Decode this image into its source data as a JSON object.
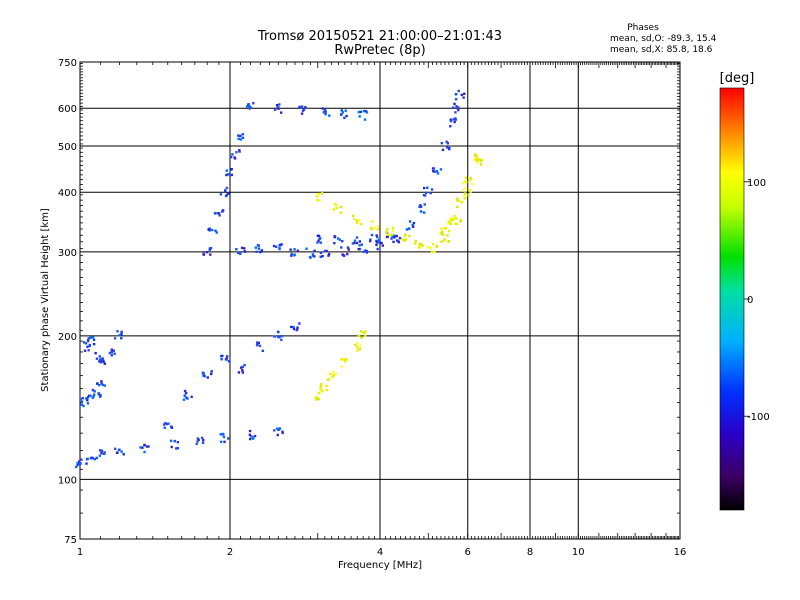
{
  "chart_data": {
    "type": "scatter",
    "title": "Tromsø 20150521 21:00:00–21:01:43",
    "subtitle": "RwPretec (8p)",
    "xlabel": "Frequency [MHz]",
    "ylabel": "Stationary phase Virtual Height [km]",
    "x_scale": "log",
    "y_scale": "log",
    "xlim": [
      1,
      16
    ],
    "ylim": [
      75,
      750
    ],
    "x_ticks": [
      "1",
      "2",
      "4",
      "6",
      "8",
      "10",
      "16"
    ],
    "y_ticks": [
      "75",
      "100",
      "200",
      "300",
      "400",
      "500",
      "600",
      "750"
    ],
    "grid": true,
    "stats": {
      "heading": "Phases",
      "line_o": "mean, sd,O: -89.3, 15.4",
      "line_x": "mean, sd,X:  85.8, 18.6"
    },
    "colorbar": {
      "label": "[deg]",
      "range": [
        -180,
        180
      ],
      "ticks": [
        "100",
        "0",
        "-100"
      ]
    },
    "colors": {
      "o_mode": "#1e3cf0",
      "x_mode": "#f0f000"
    },
    "series": [
      {
        "name": "O",
        "mean": -89.3,
        "sd": 15.4,
        "segments": [
          {
            "x": [
              1.0,
              1.05,
              1.1,
              1.2,
              1.35,
              1.55,
              1.75,
              1.95,
              2.2,
              2.5
            ],
            "y": [
              108,
              110,
              113,
              115,
              116,
              118,
              120,
              122,
              124,
              126
            ]
          },
          {
            "x": [
              1.02,
              1.05,
              1.08,
              1.1
            ],
            "y": [
              145,
              148,
              152,
              158
            ]
          },
          {
            "x": [
              1.03,
              1.06,
              1.09,
              1.12,
              1.16,
              1.2
            ],
            "y": [
              190,
              196,
              180,
              175,
              185,
              200
            ]
          },
          {
            "x": [
              1.5,
              1.65,
              1.8,
              1.95,
              2.1,
              2.3,
              2.5,
              2.7
            ],
            "y": [
              130,
              150,
              165,
              180,
              170,
              190,
              200,
              210
            ]
          },
          {
            "x": [
              1.8,
              1.85,
              1.9,
              1.95,
              2.0,
              2.05,
              2.1
            ],
            "y": [
              300,
              330,
              360,
              400,
              440,
              480,
              520
            ]
          },
          {
            "x": [
              2.1,
              2.3,
              2.5,
              2.7,
              2.9,
              3.1,
              3.4,
              3.7,
              4.0,
              4.3,
              4.6,
              4.9
            ],
            "y": [
              300,
              305,
              310,
              300,
              298,
              295,
              300,
              305,
              310,
              320,
              340,
              370
            ]
          },
          {
            "x": [
              3.0,
              3.3,
              3.6,
              3.9,
              4.2
            ],
            "y": [
              320,
              318,
              316,
              320,
              325
            ]
          },
          {
            "x": [
              5.0,
              5.2,
              5.4,
              5.6,
              5.7,
              5.8
            ],
            "y": [
              400,
              440,
              500,
              560,
              600,
              640
            ]
          },
          {
            "x": [
              2.2,
              2.5,
              2.8,
              3.1,
              3.4,
              3.7
            ],
            "y": [
              605,
              600,
              595,
              590,
              585,
              580
            ]
          }
        ]
      },
      {
        "name": "X",
        "mean": 85.8,
        "sd": 18.6,
        "segments": [
          {
            "x": [
              3.0,
              3.3,
              3.6,
              3.9,
              4.2,
              4.5,
              4.8,
              5.1,
              5.4,
              5.7,
              6.0,
              6.3
            ],
            "y": [
              390,
              370,
              350,
              340,
              330,
              320,
              310,
              305,
              320,
              350,
              400,
              460
            ]
          },
          {
            "x": [
              3.0,
              3.1,
              3.2,
              3.4,
              3.6,
              3.7
            ],
            "y": [
              150,
              155,
              165,
              175,
              190,
              200
            ]
          },
          {
            "x": [
              5.4,
              5.6,
              5.8,
              6.0,
              6.2
            ],
            "y": [
              330,
              350,
              380,
              420,
              470
            ]
          }
        ]
      }
    ]
  }
}
